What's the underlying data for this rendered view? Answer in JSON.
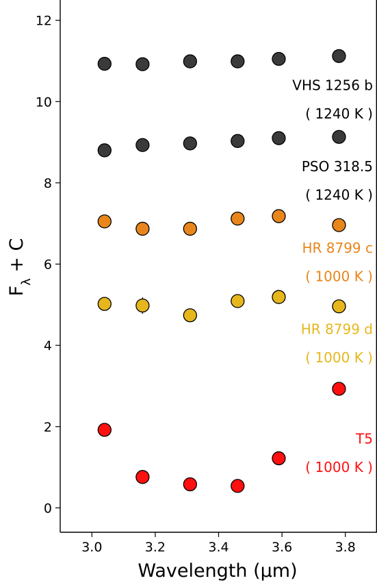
{
  "chart_data": {
    "type": "scatter",
    "title": "",
    "xlabel": "Wavelength (μm)",
    "ylabel_main": "F",
    "ylabel_sub": "λ",
    "ylabel_rest": " + C",
    "xlim": [
      2.9,
      3.9
    ],
    "ylim": [
      -0.6,
      12.5
    ],
    "x_ticks": [
      3.0,
      3.2,
      3.4,
      3.6,
      3.8
    ],
    "x_tick_labels": [
      "3.0",
      "3.2",
      "3.4",
      "3.6",
      "3.8"
    ],
    "y_ticks": [
      0,
      2,
      4,
      6,
      8,
      10,
      12
    ],
    "y_tick_labels": [
      "0",
      "2",
      "4",
      "6",
      "8",
      "10",
      "12"
    ],
    "grid": false,
    "legend": "none",
    "series": [
      {
        "color": "#3a3a3a",
        "x": [
          3.04,
          3.16,
          3.31,
          3.46,
          3.59,
          3.78
        ],
        "y": [
          10.93,
          10.92,
          10.99,
          10.99,
          11.05,
          11.12
        ],
        "label_lines": [
          "VHS 1256 b",
          "( 1240 K )"
        ],
        "label_y": [
          10.4,
          9.7
        ],
        "label_color": "#000000"
      },
      {
        "color": "#3a3a3a",
        "x": [
          3.04,
          3.16,
          3.31,
          3.46,
          3.59,
          3.78
        ],
        "y": [
          8.8,
          8.93,
          8.97,
          9.03,
          9.1,
          9.13
        ],
        "label_lines": [
          "PSO 318.5",
          "( 1240 K )"
        ],
        "label_y": [
          8.4,
          7.7
        ],
        "label_color": "#000000"
      },
      {
        "color": "#e8861c",
        "x": [
          3.04,
          3.16,
          3.31,
          3.46,
          3.59,
          3.78
        ],
        "y": [
          7.05,
          6.87,
          6.87,
          7.12,
          7.18,
          6.96
        ],
        "label_lines": [
          "HR 8799 c",
          "( 1000 K )"
        ],
        "label_y": [
          6.4,
          5.7
        ],
        "label_color": "#e8861c"
      },
      {
        "color": "#e6b71c",
        "x": [
          3.04,
          3.16,
          3.31,
          3.46,
          3.59,
          3.78
        ],
        "y": [
          5.02,
          4.98,
          4.74,
          5.09,
          5.19,
          4.96
        ],
        "yerr": [
          0.15,
          0.2,
          0,
          0,
          0,
          0
        ],
        "label_lines": [
          "HR 8799 d",
          "( 1000 K )"
        ],
        "label_y": [
          4.4,
          3.7
        ],
        "label_color": "#e6b71c"
      },
      {
        "color": "#ff1010",
        "x": [
          3.04,
          3.16,
          3.31,
          3.46,
          3.59,
          3.78
        ],
        "y": [
          1.92,
          0.76,
          0.58,
          0.54,
          1.22,
          2.93
        ],
        "label_lines": [
          "T5",
          "( 1000 K )"
        ],
        "label_y": [
          1.7,
          1.0
        ],
        "label_color": "#ff1010"
      }
    ]
  }
}
